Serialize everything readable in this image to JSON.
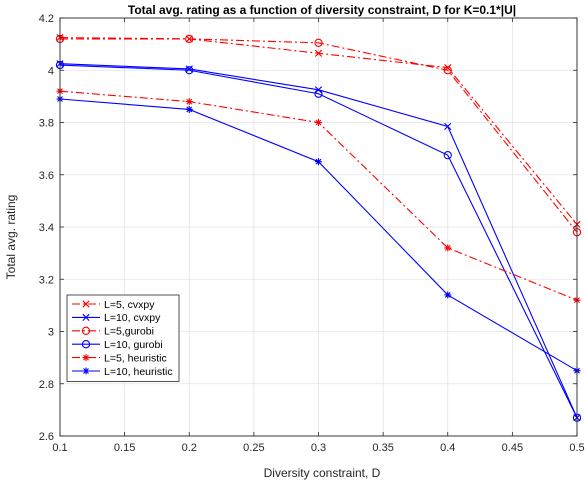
{
  "chart_data": {
    "type": "line",
    "title": "Total avg. rating as a function of diversity constraint, D for K=0.1*|U|",
    "xlabel": "Diversity constraint, D",
    "ylabel": "Total avg. rating",
    "xlim": [
      0.1,
      0.5
    ],
    "ylim": [
      2.6,
      4.2
    ],
    "xticks": [
      "0.1",
      "0.15",
      "0.2",
      "0.25",
      "0.3",
      "0.35",
      "0.4",
      "0.45",
      "0.5"
    ],
    "yticks": [
      "2.6",
      "2.8",
      "3",
      "3.2",
      "3.4",
      "3.6",
      "3.8",
      "4",
      "4.2"
    ],
    "grid": true,
    "legend_position": "bottom-left",
    "x": [
      0.1,
      0.2,
      0.3,
      0.4,
      0.5
    ],
    "series": [
      {
        "name": "L=5, cvxpy",
        "color": "#ff0000",
        "line": "dashdot",
        "marker": "x",
        "values": [
          4.125,
          4.12,
          4.065,
          4.01,
          3.41
        ]
      },
      {
        "name": "L=10, cvxpy",
        "color": "#0000ff",
        "line": "solid",
        "marker": "x",
        "values": [
          4.025,
          4.005,
          3.925,
          3.785,
          2.67
        ]
      },
      {
        "name": "L=5,gurobi",
        "color": "#ff0000",
        "line": "dashdot",
        "marker": "o",
        "values": [
          4.12,
          4.12,
          4.105,
          4.0,
          3.38
        ]
      },
      {
        "name": "L=10, gurobi",
        "color": "#0000ff",
        "line": "solid",
        "marker": "o",
        "values": [
          4.02,
          4.0,
          3.91,
          3.675,
          2.67
        ]
      },
      {
        "name": "L=5, heuristic",
        "color": "#ff0000",
        "line": "dashdot",
        "marker": "*",
        "values": [
          3.92,
          3.88,
          3.8,
          3.32,
          3.12
        ]
      },
      {
        "name": "L=10, heuristic",
        "color": "#0000ff",
        "line": "solid",
        "marker": "*",
        "values": [
          3.89,
          3.85,
          3.65,
          3.14,
          2.85
        ]
      }
    ]
  }
}
